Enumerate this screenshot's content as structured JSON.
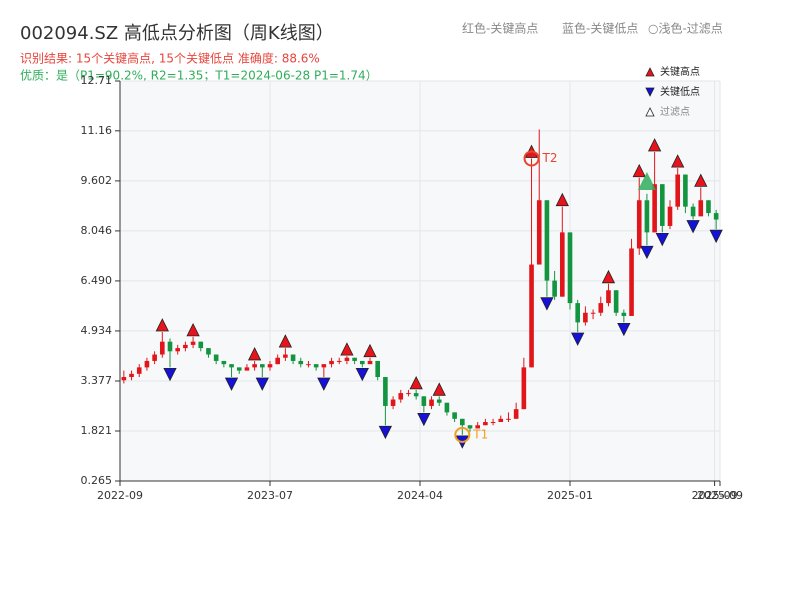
{
  "chart_data": {
    "type": "candlestick",
    "title": "002094.SZ 高低点分析图（周K线图）",
    "subtitle": "识别结果: 15个关键高点, 15个关键低点  准确度: 88.6%",
    "quality_note": "优质：是（P1=90.2%, R2=1.35；T1=2024-06-28 P1=1.74）",
    "header_legend": [
      "红色-关键高点",
      "蓝色-关键低点",
      "○浅色-过滤点"
    ],
    "legend": [
      "关键高点",
      "关键低点",
      "过滤点"
    ],
    "up_color": "#e0161a",
    "down_color": "#13943e",
    "high_color": "#e8141c",
    "low_color": "#1411d8",
    "filtered_color": "#2fae5a",
    "grid": true,
    "xlim": [
      0,
      78
    ],
    "xticks": [
      {
        "value": 0,
        "label": "2022-09"
      },
      {
        "value": 19.5,
        "label": "2023-07"
      },
      {
        "value": 39,
        "label": "2024-04"
      },
      {
        "value": 58.5,
        "label": "2025-01"
      },
      {
        "value": 77.3,
        "label": "2025-09"
      },
      {
        "value": 78,
        "label": "2025-09"
      }
    ],
    "ylim": [
      0.265,
      12.71
    ],
    "yticks": [
      0.265,
      1.821,
      3.377,
      4.934,
      {
        "value": 6.49,
        "label": "6.490"
      },
      8.046,
      9.602,
      11.16,
      12.71
    ],
    "open": [
      3.4,
      3.5,
      3.6,
      3.8,
      4.0,
      4.2,
      4.6,
      4.3,
      4.4,
      4.5,
      4.6,
      4.4,
      4.2,
      4.0,
      3.9,
      3.8,
      3.7,
      3.8,
      3.9,
      3.8,
      3.9,
      4.1,
      4.2,
      4.0,
      3.9,
      3.9,
      3.8,
      3.9,
      4.0,
      4.0,
      4.1,
      4.0,
      3.9,
      4.0,
      3.5,
      2.6,
      2.8,
      3.0,
      3.0,
      2.9,
      2.6,
      2.8,
      2.7,
      2.4,
      2.2,
      2.0,
      1.9,
      2.0,
      2.1,
      2.1,
      2.2,
      2.2,
      2.5,
      3.8,
      7.0,
      9.0,
      6.5,
      6.0,
      8.0,
      5.8,
      5.2,
      5.5,
      5.5,
      5.8,
      6.2,
      5.5,
      5.4,
      7.5,
      9.0,
      8.0,
      9.5,
      8.2,
      8.8,
      9.8,
      8.8,
      8.5,
      9.0,
      8.6
    ],
    "high": [
      3.7,
      3.7,
      3.9,
      4.1,
      4.3,
      4.9,
      4.7,
      4.5,
      4.6,
      4.75,
      4.6,
      4.4,
      4.2,
      4.0,
      3.9,
      3.8,
      3.9,
      4.0,
      3.9,
      4.0,
      4.2,
      4.4,
      4.2,
      4.1,
      4.0,
      3.9,
      3.9,
      4.1,
      4.1,
      4.15,
      4.1,
      4.0,
      4.1,
      4.0,
      3.5,
      2.9,
      3.1,
      3.1,
      3.1,
      2.9,
      2.9,
      2.9,
      2.7,
      2.4,
      2.2,
      2.0,
      2.1,
      2.2,
      2.2,
      2.3,
      2.4,
      2.7,
      4.1,
      10.3,
      11.2,
      9.0,
      6.8,
      8.8,
      8.0,
      5.9,
      5.7,
      5.6,
      6.0,
      6.4,
      6.2,
      5.6,
      7.8,
      9.7,
      9.2,
      10.5,
      9.5,
      9.0,
      10.0,
      9.8,
      8.9,
      9.4,
      9.0,
      8.7
    ],
    "low": [
      3.3,
      3.4,
      3.5,
      3.7,
      3.9,
      4.1,
      3.8,
      4.2,
      4.3,
      4.4,
      4.3,
      4.1,
      3.9,
      3.8,
      3.5,
      3.6,
      3.7,
      3.7,
      3.5,
      3.7,
      3.9,
      4.0,
      3.9,
      3.8,
      3.8,
      3.7,
      3.5,
      3.8,
      3.9,
      3.9,
      3.9,
      3.8,
      3.9,
      3.4,
      2.0,
      2.5,
      2.7,
      2.9,
      2.8,
      2.4,
      2.5,
      2.6,
      2.3,
      2.1,
      1.7,
      1.8,
      1.9,
      2.0,
      2.0,
      2.1,
      2.1,
      2.2,
      2.5,
      3.8,
      7.0,
      6.0,
      5.9,
      6.0,
      5.6,
      4.9,
      5.1,
      5.3,
      5.4,
      5.7,
      5.4,
      5.2,
      5.4,
      7.3,
      7.6,
      8.0,
      8.0,
      8.1,
      8.7,
      8.6,
      8.4,
      8.5,
      8.5,
      8.1
    ],
    "close": [
      3.5,
      3.6,
      3.8,
      4.0,
      4.2,
      4.6,
      4.3,
      4.4,
      4.5,
      4.6,
      4.4,
      4.2,
      4.0,
      3.9,
      3.8,
      3.7,
      3.8,
      3.9,
      3.8,
      3.9,
      4.1,
      4.2,
      4.0,
      3.9,
      3.9,
      3.8,
      3.9,
      4.0,
      4.0,
      4.1,
      4.0,
      3.9,
      4.0,
      3.5,
      2.6,
      2.8,
      3.0,
      3.0,
      2.9,
      2.6,
      2.8,
      2.7,
      2.4,
      2.2,
      2.0,
      1.9,
      2.0,
      2.1,
      2.1,
      2.2,
      2.2,
      2.5,
      3.8,
      7.0,
      9.0,
      6.5,
      6.0,
      8.0,
      5.8,
      5.2,
      5.5,
      5.5,
      5.8,
      6.2,
      5.5,
      5.4,
      7.5,
      9.0,
      8.0,
      9.5,
      8.2,
      8.8,
      9.8,
      8.8,
      8.5,
      9.0,
      8.6,
      8.4
    ],
    "key_highs": {
      "x": [
        5,
        9,
        17,
        21,
        29,
        32,
        38,
        41,
        53,
        57,
        63,
        67,
        69,
        72,
        75
      ],
      "values": [
        4.9,
        4.75,
        4.0,
        4.4,
        4.15,
        4.1,
        3.1,
        2.9,
        10.3,
        8.8,
        6.4,
        9.7,
        10.5,
        10.0,
        9.4
      ]
    },
    "key_lows": {
      "x": [
        6,
        14,
        18,
        26,
        31,
        34,
        39,
        44,
        55,
        59,
        65,
        68,
        70,
        74,
        77
      ],
      "values": [
        3.8,
        3.5,
        3.5,
        3.5,
        3.8,
        2.0,
        2.4,
        1.7,
        6.0,
        4.9,
        5.2,
        7.6,
        8.0,
        8.4,
        8.1
      ]
    },
    "filtered": {
      "x": [
        68
      ],
      "values": [
        9.6
      ]
    },
    "annotations": [
      {
        "text": "T2",
        "x": 53,
        "value": 10.3,
        "color": "#e8452c"
      },
      {
        "text": "T1",
        "x": 44,
        "value": 1.7,
        "color": "#f0a020"
      }
    ]
  }
}
